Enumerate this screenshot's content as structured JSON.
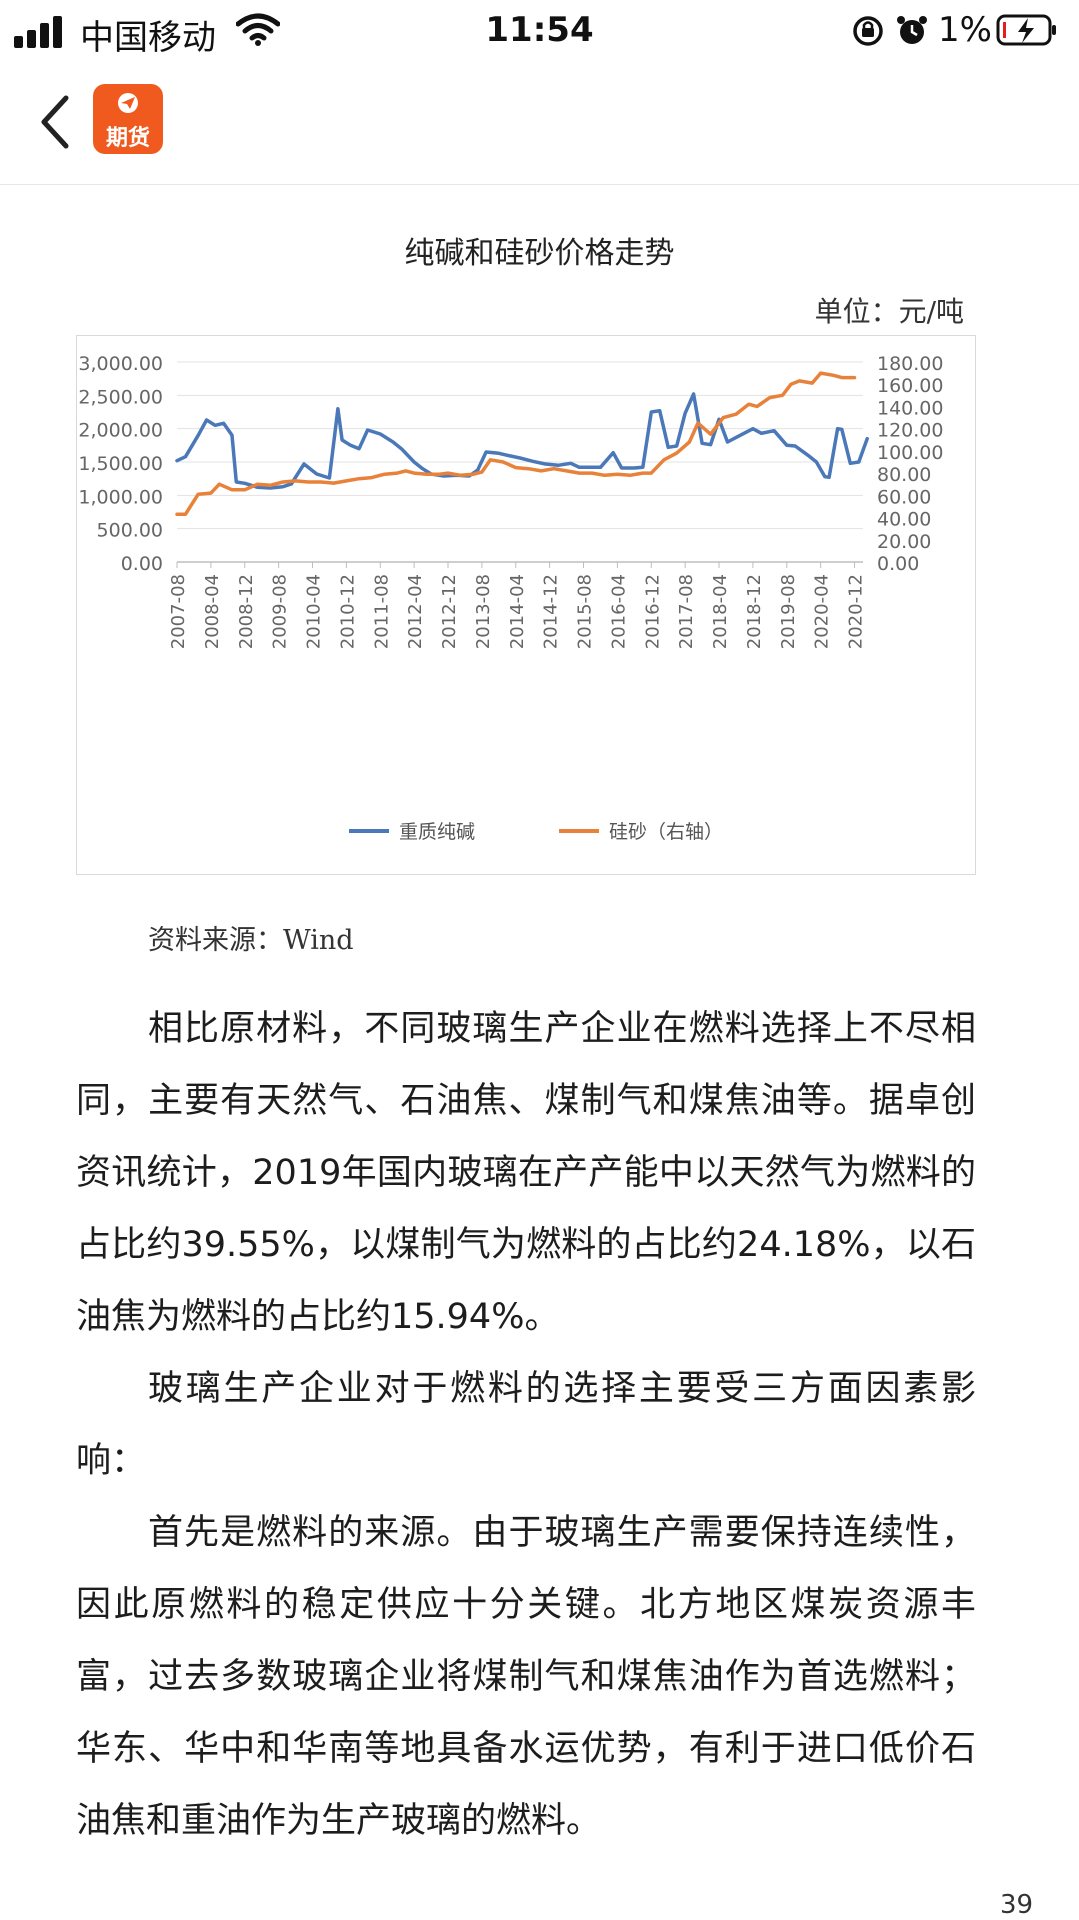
{
  "status_bar": {
    "carrier": "中国移动",
    "time": "11:54",
    "battery": "1%"
  },
  "nav": {
    "app_label": "期货"
  },
  "chart_title": "纯碱和硅砂价格走势",
  "chart_unit": "单位：元/吨",
  "chart_data": {
    "type": "line",
    "title": "纯碱和硅砂价格走势",
    "unit": "单位：元/吨",
    "y_left": {
      "range": [
        0,
        3000
      ],
      "ticks": [
        "3,000.00",
        "2,500.00",
        "2,000.00",
        "1,500.00",
        "1,000.00",
        "500.00",
        "0.00"
      ]
    },
    "y_right": {
      "range": [
        0,
        180
      ],
      "ticks": [
        "180.00",
        "160.00",
        "140.00",
        "120.00",
        "100.00",
        "80.00",
        "60.00",
        "40.00",
        "20.00",
        "0.00"
      ]
    },
    "x_ticks": [
      "2007-08",
      "2008-04",
      "2008-12",
      "2009-08",
      "2010-04",
      "2010-12",
      "2011-08",
      "2012-04",
      "2012-12",
      "2013-08",
      "2014-04",
      "2014-12",
      "2015-08",
      "2016-04",
      "2016-12",
      "2017-08",
      "2018-04",
      "2018-12",
      "2019-08",
      "2020-04",
      "2020-12"
    ],
    "x_range": [
      "2007-08",
      "2021-02"
    ],
    "grid": "horizontal",
    "legend": "bottom",
    "series": [
      {
        "name": "重质纯碱",
        "axis": "left",
        "color": "#4a78b8",
        "points": [
          [
            "2007-08",
            1520
          ],
          [
            "2007-10",
            1580
          ],
          [
            "2008-01",
            1900
          ],
          [
            "2008-03",
            2130
          ],
          [
            "2008-05",
            2050
          ],
          [
            "2008-07",
            2080
          ],
          [
            "2008-09",
            1900
          ],
          [
            "2008-10",
            1200
          ],
          [
            "2008-12",
            1180
          ],
          [
            "2009-03",
            1120
          ],
          [
            "2009-06",
            1110
          ],
          [
            "2009-09",
            1130
          ],
          [
            "2009-11",
            1170
          ],
          [
            "2010-02",
            1470
          ],
          [
            "2010-05",
            1320
          ],
          [
            "2010-08",
            1260
          ],
          [
            "2010-10",
            2300
          ],
          [
            "2010-11",
            1830
          ],
          [
            "2011-01",
            1750
          ],
          [
            "2011-03",
            1700
          ],
          [
            "2011-05",
            1980
          ],
          [
            "2011-08",
            1920
          ],
          [
            "2011-11",
            1800
          ],
          [
            "2012-01",
            1700
          ],
          [
            "2012-04",
            1500
          ],
          [
            "2012-06",
            1400
          ],
          [
            "2012-08",
            1320
          ],
          [
            "2012-11",
            1290
          ],
          [
            "2013-02",
            1300
          ],
          [
            "2013-05",
            1290
          ],
          [
            "2013-07",
            1380
          ],
          [
            "2013-09",
            1650
          ],
          [
            "2013-12",
            1630
          ],
          [
            "2014-02",
            1600
          ],
          [
            "2014-05",
            1560
          ],
          [
            "2014-08",
            1510
          ],
          [
            "2014-11",
            1470
          ],
          [
            "2015-02",
            1450
          ],
          [
            "2015-05",
            1480
          ],
          [
            "2015-07",
            1420
          ],
          [
            "2015-10",
            1420
          ],
          [
            "2015-12",
            1420
          ],
          [
            "2016-03",
            1640
          ],
          [
            "2016-05",
            1410
          ],
          [
            "2016-08",
            1410
          ],
          [
            "2016-10",
            1420
          ],
          [
            "2016-12",
            2250
          ],
          [
            "2017-02",
            2270
          ],
          [
            "2017-04",
            1720
          ],
          [
            "2017-06",
            1740
          ],
          [
            "2017-08",
            2230
          ],
          [
            "2017-10",
            2520
          ],
          [
            "2017-12",
            1780
          ],
          [
            "2018-02",
            1760
          ],
          [
            "2018-04",
            2140
          ],
          [
            "2018-06",
            1800
          ],
          [
            "2018-09",
            1900
          ],
          [
            "2018-12",
            2000
          ],
          [
            "2019-02",
            1930
          ],
          [
            "2019-05",
            1970
          ],
          [
            "2019-08",
            1750
          ],
          [
            "2019-10",
            1740
          ],
          [
            "2020-01",
            1600
          ],
          [
            "2020-03",
            1500
          ],
          [
            "2020-05",
            1280
          ],
          [
            "2020-06",
            1270
          ],
          [
            "2020-08",
            2000
          ],
          [
            "2020-09",
            1990
          ],
          [
            "2020-11",
            1480
          ],
          [
            "2021-01",
            1500
          ],
          [
            "2021-03",
            1850
          ]
        ]
      },
      {
        "name": "硅砂（右轴）",
        "axis": "right",
        "color": "#e8823a",
        "points": [
          [
            "2007-08",
            43
          ],
          [
            "2007-10",
            43
          ],
          [
            "2008-01",
            61
          ],
          [
            "2008-04",
            62
          ],
          [
            "2008-06",
            70
          ],
          [
            "2008-09",
            65
          ],
          [
            "2008-12",
            65
          ],
          [
            "2009-03",
            70
          ],
          [
            "2009-06",
            69
          ],
          [
            "2009-09",
            72
          ],
          [
            "2009-12",
            73
          ],
          [
            "2010-03",
            72
          ],
          [
            "2010-06",
            72
          ],
          [
            "2010-09",
            71
          ],
          [
            "2010-12",
            73
          ],
          [
            "2011-03",
            75
          ],
          [
            "2011-06",
            76
          ],
          [
            "2011-09",
            79
          ],
          [
            "2011-12",
            80
          ],
          [
            "2012-02",
            82
          ],
          [
            "2012-04",
            80
          ],
          [
            "2012-07",
            79
          ],
          [
            "2012-10",
            79
          ],
          [
            "2012-12",
            80
          ],
          [
            "2013-03",
            78
          ],
          [
            "2013-06",
            79
          ],
          [
            "2013-08",
            81
          ],
          [
            "2013-10",
            92
          ],
          [
            "2014-01",
            90
          ],
          [
            "2014-04",
            85
          ],
          [
            "2014-07",
            84
          ],
          [
            "2014-10",
            82
          ],
          [
            "2015-01",
            84
          ],
          [
            "2015-04",
            82
          ],
          [
            "2015-07",
            80
          ],
          [
            "2015-10",
            80
          ],
          [
            "2016-01",
            78
          ],
          [
            "2016-04",
            79
          ],
          [
            "2016-07",
            78
          ],
          [
            "2016-10",
            80
          ],
          [
            "2016-12",
            80
          ],
          [
            "2017-03",
            92
          ],
          [
            "2017-06",
            98
          ],
          [
            "2017-09",
            108
          ],
          [
            "2017-11",
            125
          ],
          [
            "2018-02",
            115
          ],
          [
            "2018-05",
            130
          ],
          [
            "2018-08",
            133
          ],
          [
            "2018-11",
            142
          ],
          [
            "2019-01",
            140
          ],
          [
            "2019-04",
            148
          ],
          [
            "2019-07",
            150
          ],
          [
            "2019-09",
            160
          ],
          [
            "2019-11",
            163
          ],
          [
            "2020-02",
            161
          ],
          [
            "2020-04",
            170
          ],
          [
            "2020-07",
            168
          ],
          [
            "2020-09",
            166
          ],
          [
            "2020-12",
            166
          ]
        ]
      }
    ]
  },
  "source_text": "资料来源：Wind",
  "article": {
    "paragraphs": [
      "相比原材料，不同玻璃生产企业在燃料选择上不尽相同，主要有天然气、石油焦、煤制气和煤焦油等。据卓创资讯统计，2019年国内玻璃在产产能中以天然气为燃料的占比约39.55%，以煤制气为燃料的占比约24.18%，以石油焦为燃料的占比约15.94%。",
      "玻璃生产企业对于燃料的选择主要受三方面因素影响：",
      "首先是燃料的来源。由于玻璃生产需要保持连续性，因此原燃料的稳定供应十分关键。北方地区煤炭资源丰富，过去多数玻璃企业将煤制气和煤焦油作为首选燃料；华东、华中和华南等地具备水运优势，有利于进口低价石油焦和重油作为生产玻璃的燃料。"
    ]
  },
  "page_number": "39",
  "icons": {
    "signal": "signal-icon",
    "wifi": "wifi-icon",
    "rotation_lock": "rotation-lock-icon",
    "alarm": "alarm-icon",
    "battery": "battery-charging-icon",
    "back": "back-chevron-icon"
  }
}
